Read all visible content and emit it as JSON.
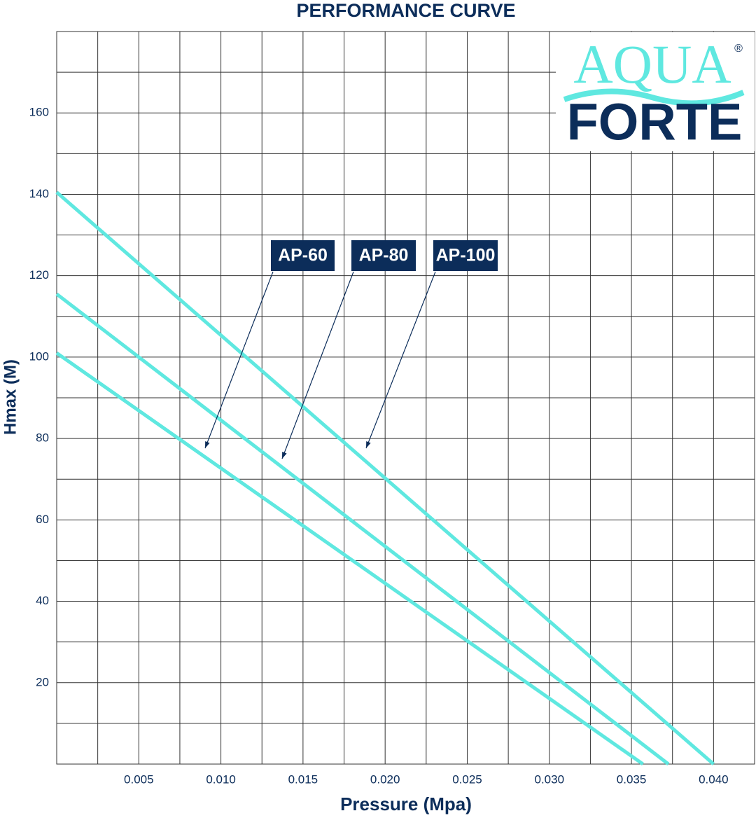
{
  "chart_data": {
    "type": "line",
    "title": "PERFORMANCE CURVE",
    "x_label": "Pressure (Mpa)",
    "y_label": "Hmax (M)",
    "logo": {
      "top": "AQUA",
      "bottom": "FORTE",
      "mark": "®"
    },
    "series": [
      {
        "name": "AP-60",
        "color": "#5fe8e0",
        "x": [
          0,
          0.0357
        ],
        "values": [
          101,
          0
        ]
      },
      {
        "name": "AP-80",
        "color": "#5fe8e0",
        "x": [
          0,
          0.03725
        ],
        "values": [
          115.5,
          0
        ]
      },
      {
        "name": "AP-100",
        "color": "#5fe8e0",
        "x": [
          0,
          0.04
        ],
        "values": [
          140.5,
          0
        ]
      }
    ],
    "xlim": [
      0,
      0.0425
    ],
    "ylim": [
      0,
      180
    ],
    "xticks": [
      0.005,
      {
        "value": 0.01,
        "label": "0.010"
      },
      0.015,
      {
        "value": 0.02,
        "label": "0.020"
      },
      0.025,
      {
        "value": 0.03,
        "label": "0.030"
      },
      0.035,
      {
        "value": 0.04,
        "label": "0.040"
      }
    ],
    "yticks": [
      20,
      40,
      60,
      80,
      100,
      120,
      140,
      160
    ],
    "grid": true,
    "xgrid_step": 0.0025,
    "ygrid_step": 10
  }
}
